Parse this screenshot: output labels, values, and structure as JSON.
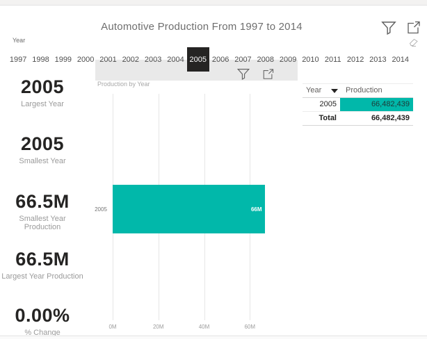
{
  "header": {
    "title": "Automotive Production From 1997 to 2014"
  },
  "slicer": {
    "field_label": "Year",
    "years": [
      "1997",
      "1998",
      "1999",
      "2000",
      "2001",
      "2002",
      "2003",
      "2004",
      "2005",
      "2006",
      "2007",
      "2008",
      "2009",
      "2010",
      "2011",
      "2012",
      "2013",
      "2014"
    ],
    "selected_year": "2005",
    "selected_index": 8
  },
  "kpi_cards": [
    {
      "value": "2005",
      "label": "Largest Year"
    },
    {
      "value": "2005",
      "label": "Smallest Year"
    },
    {
      "value": "66.5M",
      "label": "Smallest Year Production"
    },
    {
      "value": "66.5M",
      "label": "Largest Year Production"
    },
    {
      "value": "0.00%",
      "label": "% Change"
    }
  ],
  "chart_data": {
    "type": "bar",
    "orientation": "horizontal",
    "title": "Production by Year",
    "categories": [
      "2005"
    ],
    "values": [
      66482439
    ],
    "data_labels": [
      "66M"
    ],
    "x_ticks": [
      "0M",
      "20M",
      "40M",
      "60M"
    ],
    "x_tick_values": [
      0,
      20000000,
      40000000,
      60000000
    ],
    "xlim": [
      0,
      80000000
    ],
    "bar_color": "#01B8AA",
    "grid": true,
    "legend": "none"
  },
  "table": {
    "columns": [
      "Year",
      "Production"
    ],
    "sorted_by": "Year",
    "rows": [
      {
        "year": "2005",
        "production": "66,482,439",
        "highlighted": true
      }
    ],
    "total_row": {
      "label": "Total",
      "production": "66,482,439"
    }
  },
  "colors": {
    "accent_teal": "#01B8AA",
    "selected_dark": "#252423",
    "text_dark": "#252423",
    "text_gray": "#605E5C",
    "text_light": "#A6A6A6",
    "gridline": "#E6E6E6"
  }
}
